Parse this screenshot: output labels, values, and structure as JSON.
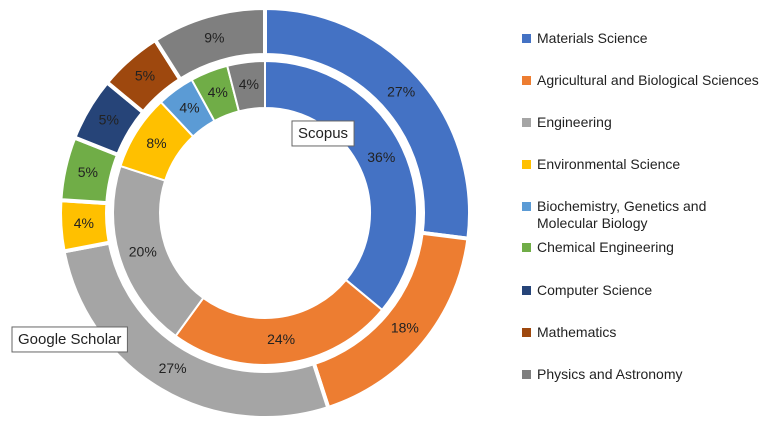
{
  "chart_data": {
    "type": "donut",
    "categories": [
      "Materials Science",
      "Agricultural and Biological Sciences",
      "Engineering",
      "Environmental Science",
      "Biochemistry, Genetics and Molecular Biology",
      "Chemical Engineering",
      "Computer Science",
      "Mathematics",
      "Physics and Astronomy"
    ],
    "colors": [
      "#4472c4",
      "#ed7d31",
      "#a5a5a5",
      "#ffc000",
      "#5b9bd5",
      "#70ad47",
      "#264478",
      "#9e480e",
      "#7f7f7f"
    ],
    "series": [
      {
        "name": "Scopus",
        "values": [
          36,
          24,
          20,
          8,
          4,
          4,
          null,
          null,
          4
        ],
        "value_labels": [
          "36%",
          "24%",
          "20%",
          "8%",
          "4%",
          "4%",
          null,
          null,
          "4%"
        ]
      },
      {
        "name": "Google Scholar",
        "values": [
          27,
          18,
          27,
          4,
          null,
          5,
          5,
          5,
          9
        ],
        "value_labels": [
          "27%",
          "18%",
          "27%",
          "4%",
          null,
          "5%",
          "5%",
          "5%",
          "9%"
        ]
      }
    ],
    "legend": "right"
  }
}
